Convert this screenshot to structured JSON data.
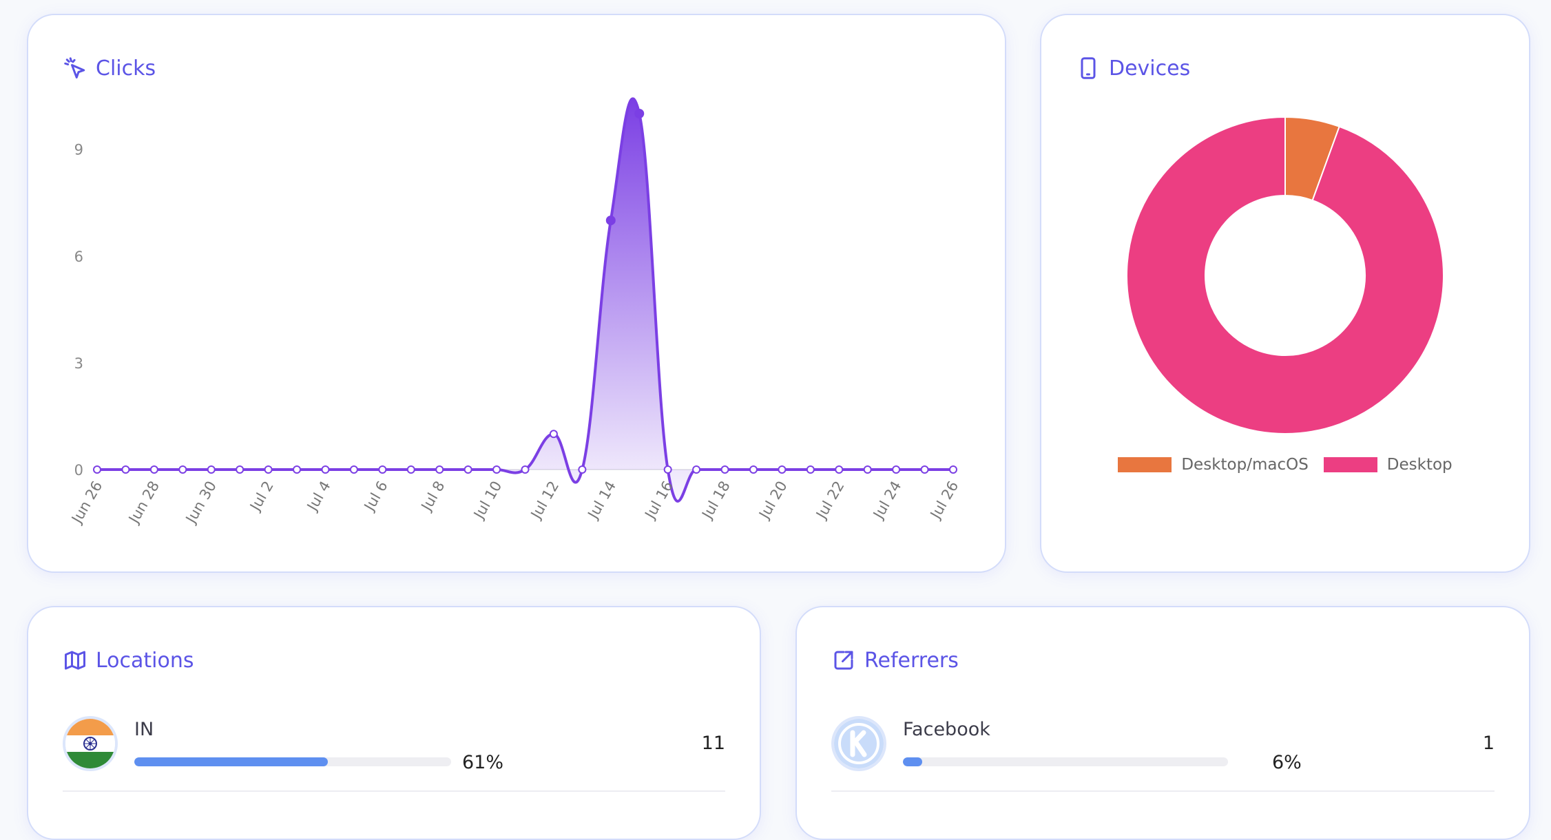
{
  "clicks": {
    "title": "Clicks",
    "icon": "cursor-click-icon",
    "chart_data": {
      "type": "area",
      "x": [
        "Jun 26",
        "Jun 27",
        "Jun 28",
        "Jun 29",
        "Jun 30",
        "Jul 1",
        "Jul 2",
        "Jul 3",
        "Jul 4",
        "Jul 5",
        "Jul 6",
        "Jul 7",
        "Jul 8",
        "Jul 9",
        "Jul 10",
        "Jul 11",
        "Jul 12",
        "Jul 13",
        "Jul 14",
        "Jul 15",
        "Jul 16",
        "Jul 17",
        "Jul 18",
        "Jul 19",
        "Jul 20",
        "Jul 21",
        "Jul 22",
        "Jul 23",
        "Jul 24",
        "Jul 25",
        "Jul 26"
      ],
      "x_tick_labels": [
        "Jun 26",
        "Jun 28",
        "Jun 30",
        "Jul 2",
        "Jul 4",
        "Jul 6",
        "Jul 8",
        "Jul 10",
        "Jul 12",
        "Jul 14",
        "Jul 16",
        "Jul 18",
        "Jul 20",
        "Jul 22",
        "Jul 24",
        "Jul 26"
      ],
      "values": [
        0,
        0,
        0,
        0,
        0,
        0,
        0,
        0,
        0,
        0,
        0,
        0,
        0,
        0,
        0,
        0,
        1,
        0,
        7,
        10,
        0,
        0,
        0,
        0,
        0,
        0,
        0,
        0,
        0,
        0,
        0
      ],
      "y_ticks": [
        0,
        3,
        6,
        9
      ],
      "ylim": [
        0,
        10
      ],
      "color": "#7b3fe4",
      "grid": false
    }
  },
  "devices": {
    "title": "Devices",
    "icon": "smartphone-icon",
    "chart_data": {
      "type": "pie",
      "donut": true,
      "labels": [
        "Desktop/macOS",
        "Desktop"
      ],
      "values": [
        1,
        17
      ],
      "colors": [
        "#e8763f",
        "#ec3e82"
      ],
      "legend": "bottom"
    }
  },
  "locations": {
    "title": "Locations",
    "icon": "map-icon",
    "rows": [
      {
        "label": "IN",
        "percent": 61,
        "percent_label": "61%",
        "count": "11",
        "avatar": "india-flag-icon"
      }
    ]
  },
  "referrers": {
    "title": "Referrers",
    "icon": "external-link-icon",
    "rows": [
      {
        "label": "Facebook",
        "percent": 6,
        "percent_label": "6%",
        "count": "1",
        "avatar": "k-logo-icon"
      }
    ]
  }
}
